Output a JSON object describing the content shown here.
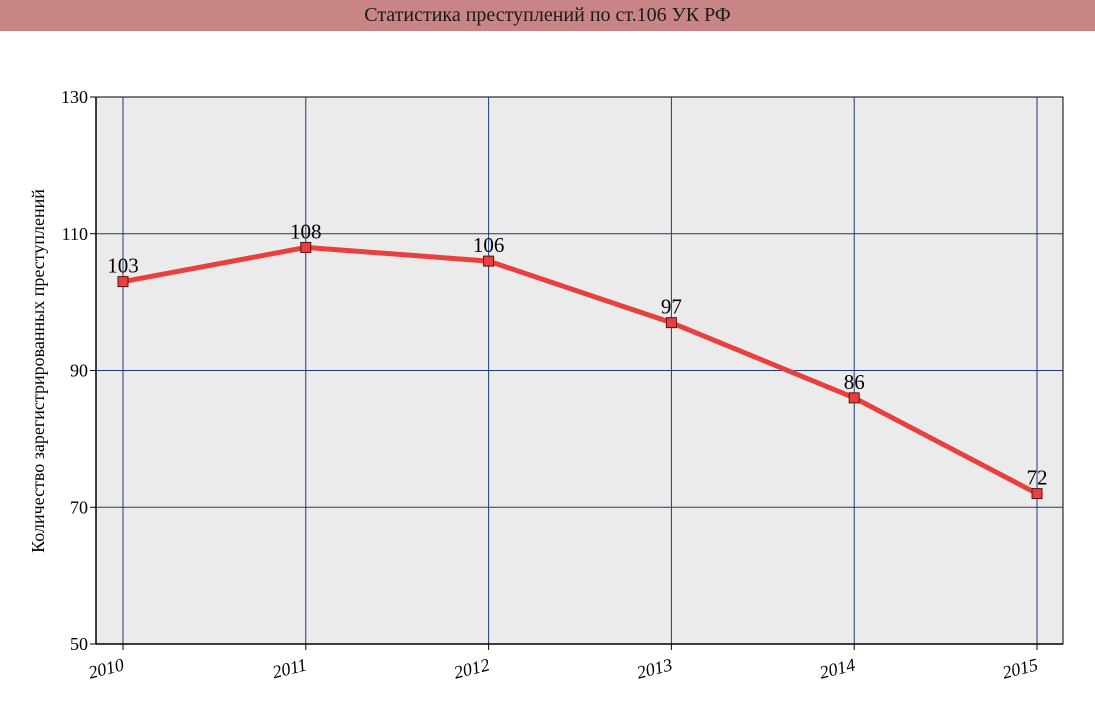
{
  "chart_data": {
    "type": "line",
    "title": "Статистика преступлений по ст.106 УК РФ",
    "xlabel": "",
    "ylabel": "Количество зарегистрированных преступлений",
    "categories": [
      "2010",
      "2011",
      "2012",
      "2013",
      "2014",
      "2015"
    ],
    "series": [
      {
        "values": [
          103,
          108,
          106,
          97,
          86,
          72
        ]
      }
    ],
    "ylim": [
      50,
      130
    ],
    "yticks": [
      "130",
      "110",
      "90",
      "70",
      "50"
    ],
    "grid": true,
    "line_color": "#e8403f",
    "marker_color": "#e8403f",
    "plot_background": "#ebebeb",
    "grid_color": "#1f3a7a",
    "title_bar_color": "#c98585"
  }
}
